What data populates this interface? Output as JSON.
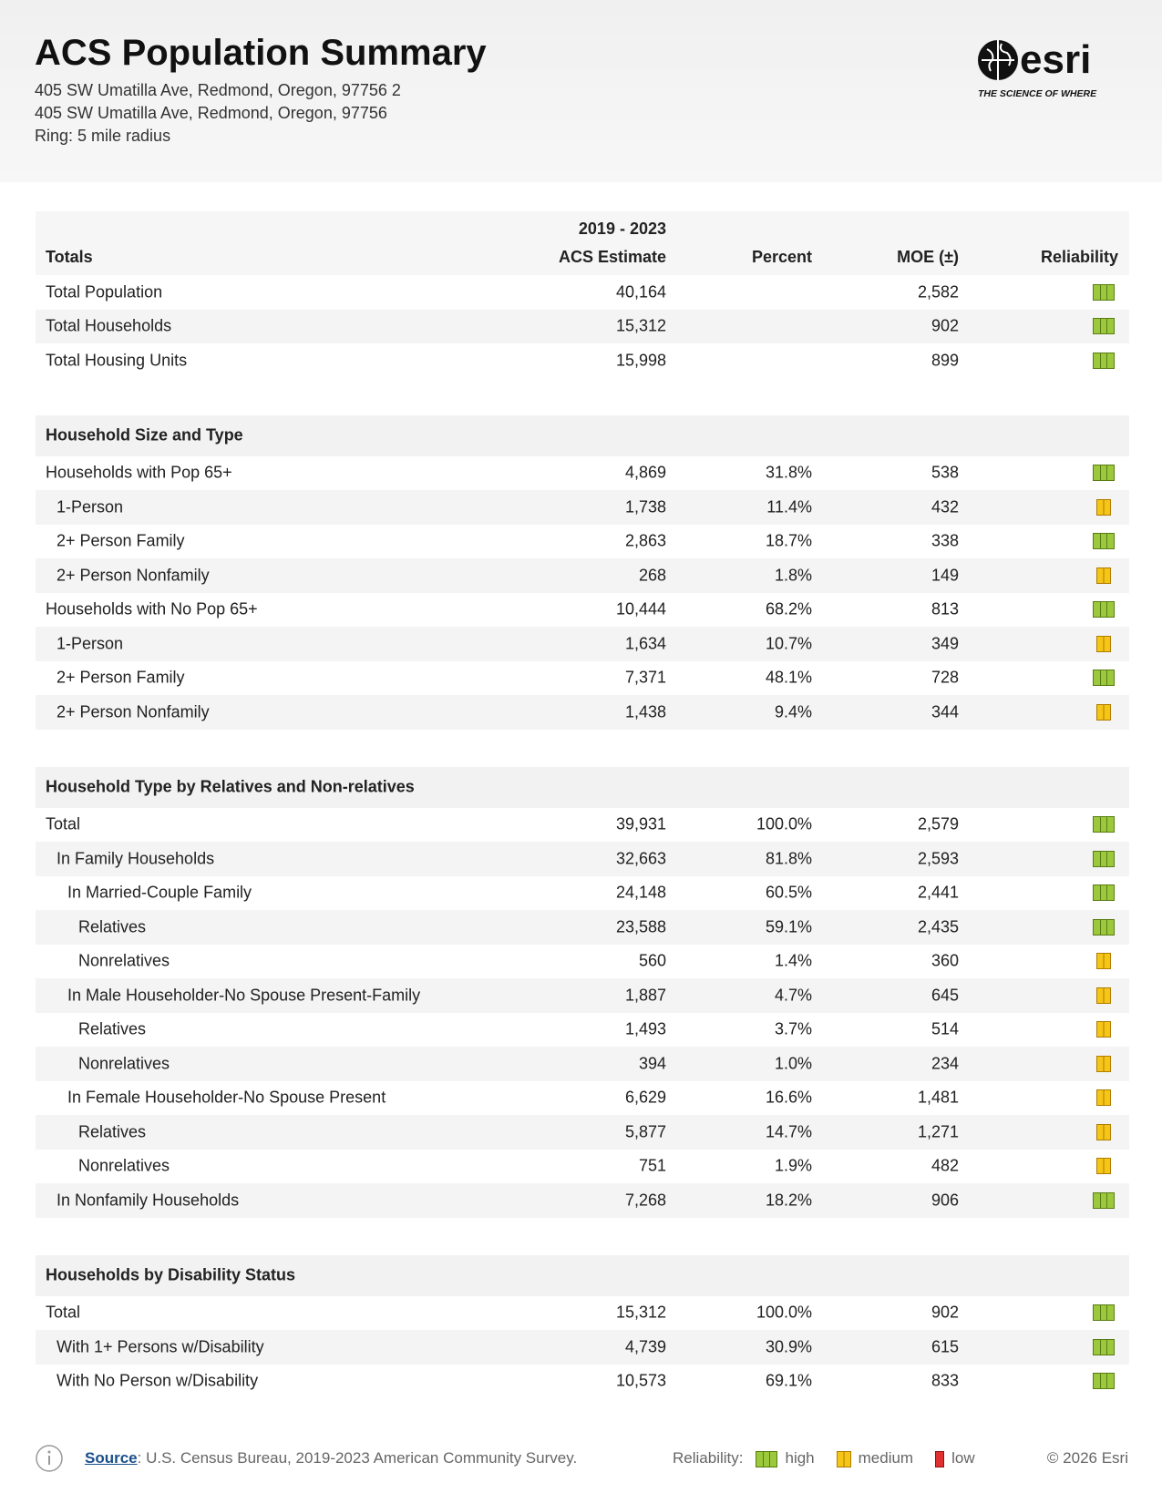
{
  "header": {
    "title": "ACS Population Summary",
    "address": [
      "405 SW Umatilla Ave, Redmond, Oregon, 97756 2",
      "405 SW Umatilla Ave, Redmond, Oregon, 97756",
      "Ring: 5 mile radius"
    ],
    "logo": {
      "name": "esri",
      "tagline": "THE SCIENCE OF WHERE"
    }
  },
  "columns": {
    "label": "Totals",
    "estimate_top": "2019 - 2023",
    "estimate": "ACS Estimate",
    "percent": "Percent",
    "moe": "MOE (±)",
    "reliability": "Reliability"
  },
  "sections": [
    {
      "rows": [
        {
          "label": "Total Population",
          "estimate": "40,164",
          "moe": "2,582",
          "reliability": "high",
          "level": 0
        },
        {
          "label": "Total Households",
          "estimate": "15,312",
          "moe": "902",
          "reliability": "high",
          "level": 0
        },
        {
          "label": "Total Housing Units",
          "estimate": "15,998",
          "moe": "899",
          "reliability": "high",
          "level": 0
        }
      ]
    },
    {
      "title": "Household Size and Type",
      "rows": [
        {
          "label": "Households with Pop 65+",
          "estimate": "4,869",
          "percent": "31.8%",
          "moe": "538",
          "reliability": "high",
          "level": 0
        },
        {
          "label": "1-Person",
          "estimate": "1,738",
          "percent": "11.4%",
          "moe": "432",
          "reliability": "medium",
          "level": 1
        },
        {
          "label": "2+ Person Family",
          "estimate": "2,863",
          "percent": "18.7%",
          "moe": "338",
          "reliability": "high",
          "level": 1
        },
        {
          "label": "2+ Person Nonfamily",
          "estimate": "268",
          "percent": "1.8%",
          "moe": "149",
          "reliability": "medium",
          "level": 1
        },
        {
          "label": "Households with No Pop 65+",
          "estimate": "10,444",
          "percent": "68.2%",
          "moe": "813",
          "reliability": "high",
          "level": 0
        },
        {
          "label": "1-Person",
          "estimate": "1,634",
          "percent": "10.7%",
          "moe": "349",
          "reliability": "medium",
          "level": 1
        },
        {
          "label": "2+ Person Family",
          "estimate": "7,371",
          "percent": "48.1%",
          "moe": "728",
          "reliability": "high",
          "level": 1
        },
        {
          "label": "2+ Person Nonfamily",
          "estimate": "1,438",
          "percent": "9.4%",
          "moe": "344",
          "reliability": "medium",
          "level": 1
        }
      ]
    },
    {
      "title": "Household Type by Relatives and Non-relatives",
      "rows": [
        {
          "label": "Total",
          "estimate": "39,931",
          "percent": "100.0%",
          "moe": "2,579",
          "reliability": "high",
          "level": 0
        },
        {
          "label": "In Family Households",
          "estimate": "32,663",
          "percent": "81.8%",
          "moe": "2,593",
          "reliability": "high",
          "level": 1
        },
        {
          "label": "In Married-Couple Family",
          "estimate": "24,148",
          "percent": "60.5%",
          "moe": "2,441",
          "reliability": "high",
          "level": 2
        },
        {
          "label": "Relatives",
          "estimate": "23,588",
          "percent": "59.1%",
          "moe": "2,435",
          "reliability": "high",
          "level": 3
        },
        {
          "label": "Nonrelatives",
          "estimate": "560",
          "percent": "1.4%",
          "moe": "360",
          "reliability": "medium",
          "level": 3
        },
        {
          "label": "In Male Householder-No Spouse Present-Family",
          "estimate": "1,887",
          "percent": "4.7%",
          "moe": "645",
          "reliability": "medium",
          "level": 2
        },
        {
          "label": "Relatives",
          "estimate": "1,493",
          "percent": "3.7%",
          "moe": "514",
          "reliability": "medium",
          "level": 3
        },
        {
          "label": "Nonrelatives",
          "estimate": "394",
          "percent": "1.0%",
          "moe": "234",
          "reliability": "medium",
          "level": 3
        },
        {
          "label": "In Female Householder-No Spouse Present",
          "estimate": "6,629",
          "percent": "16.6%",
          "moe": "1,481",
          "reliability": "medium",
          "level": 2
        },
        {
          "label": "Relatives",
          "estimate": "5,877",
          "percent": "14.7%",
          "moe": "1,271",
          "reliability": "medium",
          "level": 3
        },
        {
          "label": "Nonrelatives",
          "estimate": "751",
          "percent": "1.9%",
          "moe": "482",
          "reliability": "medium",
          "level": 3
        },
        {
          "label": "In Nonfamily Households",
          "estimate": "7,268",
          "percent": "18.2%",
          "moe": "906",
          "reliability": "high",
          "level": 1
        }
      ]
    },
    {
      "title": "Households by Disability Status",
      "rows": [
        {
          "label": "Total",
          "estimate": "15,312",
          "percent": "100.0%",
          "moe": "902",
          "reliability": "high",
          "level": 0
        },
        {
          "label": "With 1+ Persons w/Disability",
          "estimate": "4,739",
          "percent": "30.9%",
          "moe": "615",
          "reliability": "high",
          "level": 1
        },
        {
          "label": "With No Person w/Disability",
          "estimate": "10,573",
          "percent": "69.1%",
          "moe": "833",
          "reliability": "high",
          "level": 1
        }
      ]
    }
  ],
  "footer": {
    "source_link": "Source",
    "source_text": ": U.S. Census Bureau, 2019-2023 American Community Survey.",
    "legend_title": "Reliability:",
    "legend": [
      "high",
      "medium",
      "low"
    ],
    "copyright": "© 2026 Esri"
  }
}
